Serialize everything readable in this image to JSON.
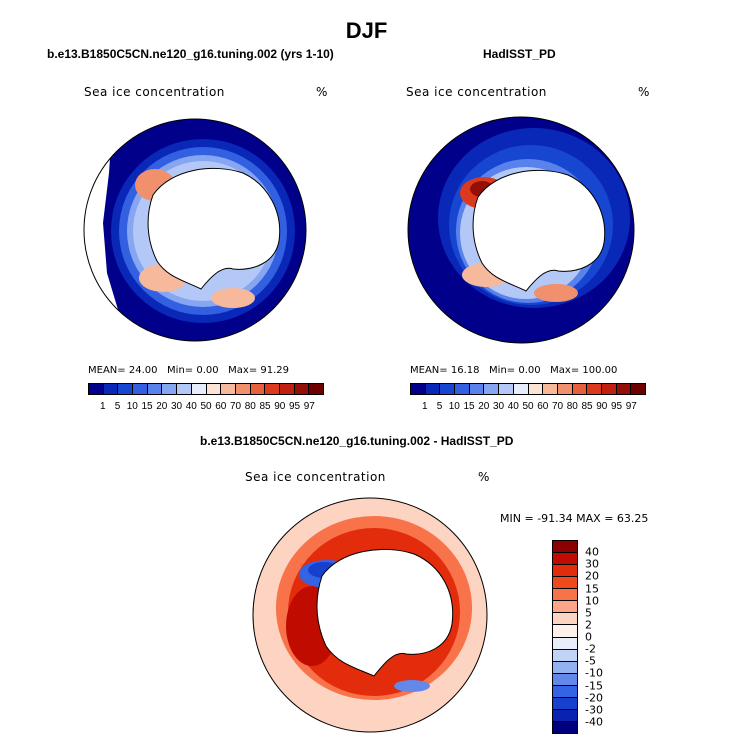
{
  "title": "DJF",
  "chart_data": [
    {
      "type": "heatmap",
      "title": "b.e13.B1850C5CN.ne120_g16.tuning.002 (yrs 1-10)",
      "variable": "Sea ice concentration",
      "units": "%",
      "stats": {
        "mean_label": "MEAN=",
        "mean": "24.00",
        "min_label": "Min=",
        "min": "0.00",
        "max_label": "Max=",
        "max": "91.29"
      },
      "colorbar_levels": [
        "1",
        "5",
        "10",
        "15",
        "20",
        "30",
        "40",
        "50",
        "60",
        "70",
        "80",
        "85",
        "90",
        "95",
        "97"
      ],
      "colorbar_colors": [
        "#00008b",
        "#0a28b8",
        "#1746d0",
        "#3360e0",
        "#5a82ec",
        "#86a6f2",
        "#b4c8f7",
        "#e6eefb",
        "#fbe3d6",
        "#f7b99c",
        "#f0906c",
        "#e85f3c",
        "#dc3a1e",
        "#bf2010",
        "#931006",
        "#6e0000"
      ]
    },
    {
      "type": "heatmap",
      "title": "HadISST_PD",
      "variable": "Sea ice concentration",
      "units": "%",
      "stats": {
        "mean_label": "MEAN=",
        "mean": "16.18",
        "min_label": "Min=",
        "min": "0.00",
        "max_label": "Max=",
        "max": "100.00"
      },
      "colorbar_levels": [
        "1",
        "5",
        "10",
        "15",
        "20",
        "30",
        "40",
        "50",
        "60",
        "70",
        "80",
        "85",
        "90",
        "95",
        "97"
      ],
      "colorbar_colors": [
        "#00008b",
        "#0a28b8",
        "#1746d0",
        "#3360e0",
        "#5a82ec",
        "#86a6f2",
        "#b4c8f7",
        "#e6eefb",
        "#fbe3d6",
        "#f7b99c",
        "#f0906c",
        "#e85f3c",
        "#dc3a1e",
        "#bf2010",
        "#931006",
        "#6e0000"
      ]
    },
    {
      "type": "heatmap",
      "title": "b.e13.B1850C5CN.ne120_g16.tuning.002 - HadISST_PD",
      "variable": "Sea ice concentration",
      "units": "%",
      "stats": {
        "min_label": "MIN =",
        "min": "-91.34",
        "max_label": "MAX =",
        "max": "63.25"
      },
      "colorbar_levels": [
        "40",
        "30",
        "20",
        "15",
        "10",
        "5",
        "2",
        "0",
        "-2",
        "-5",
        "-10",
        "-15",
        "-20",
        "-30",
        "-40"
      ],
      "colorbar_colors": [
        "#8b0000",
        "#c00c00",
        "#e22c0c",
        "#f04a1c",
        "#f8724a",
        "#fba488",
        "#fdd3c2",
        "#fdf1ea",
        "#e8effb",
        "#c2d4f5",
        "#93b2f0",
        "#6289ea",
        "#3463e3",
        "#1740cf",
        "#0a22b0",
        "#00007f"
      ]
    }
  ]
}
